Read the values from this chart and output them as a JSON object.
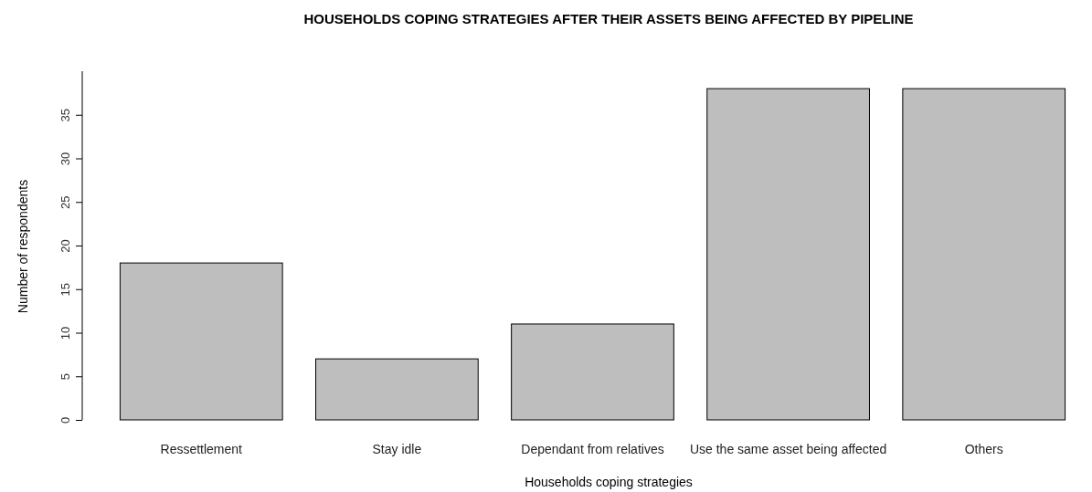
{
  "chart_data": {
    "type": "bar",
    "title": "HOUSEHOLDS COPING STRATEGIES AFTER THEIR ASSETS BEING AFFECTED BY PIPELINE",
    "xlabel": "Households coping strategies",
    "ylabel": "Number of respondents",
    "categories": [
      "Ressettlement",
      "Stay idle",
      "Dependant from relatives",
      "Use the same asset being affected",
      "Others"
    ],
    "values": [
      18,
      7,
      11,
      38,
      38
    ],
    "color": "#bebebe",
    "ylim": [
      0,
      40
    ],
    "yticks": [
      0,
      5,
      10,
      15,
      20,
      25,
      30,
      35
    ],
    "grid": false
  }
}
